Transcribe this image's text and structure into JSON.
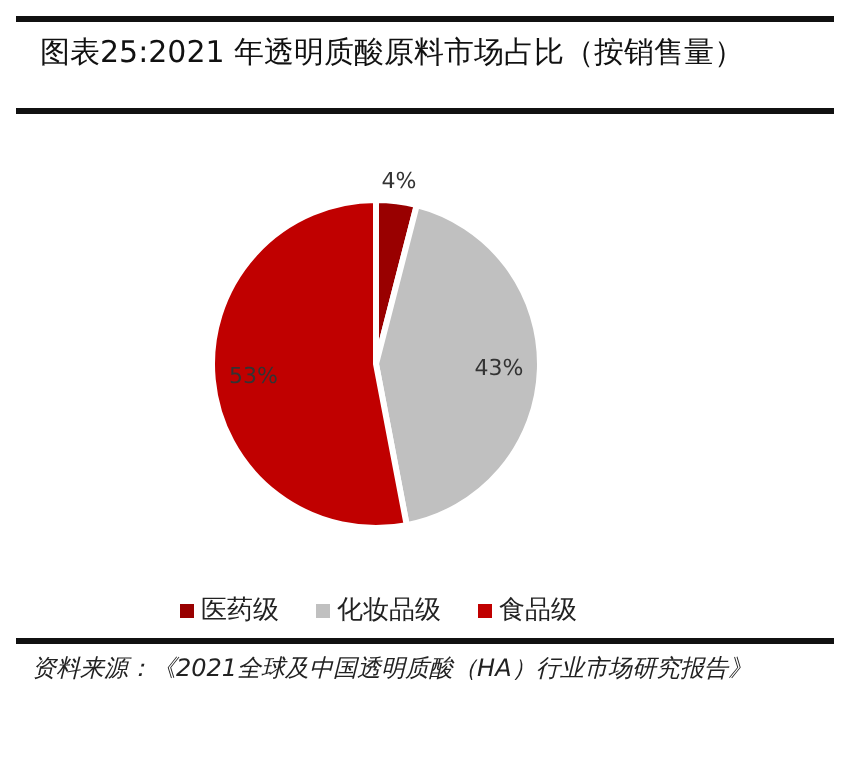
{
  "chart_data": {
    "type": "pie",
    "title": "图表25:2021 年透明质酸原料市场占比（按销售量）",
    "categories": [
      "医药级",
      "化妆品级",
      "食品级"
    ],
    "values": [
      4,
      43,
      53
    ],
    "colors": [
      "#990000",
      "#c0c0c0",
      "#c00000"
    ],
    "value_labels": [
      "4%",
      "43%",
      "53%"
    ],
    "legend": "bottom",
    "annotations": [
      "资料来源：《2021全球及中国透明质酸（HA）行业市场研究报告》"
    ]
  }
}
